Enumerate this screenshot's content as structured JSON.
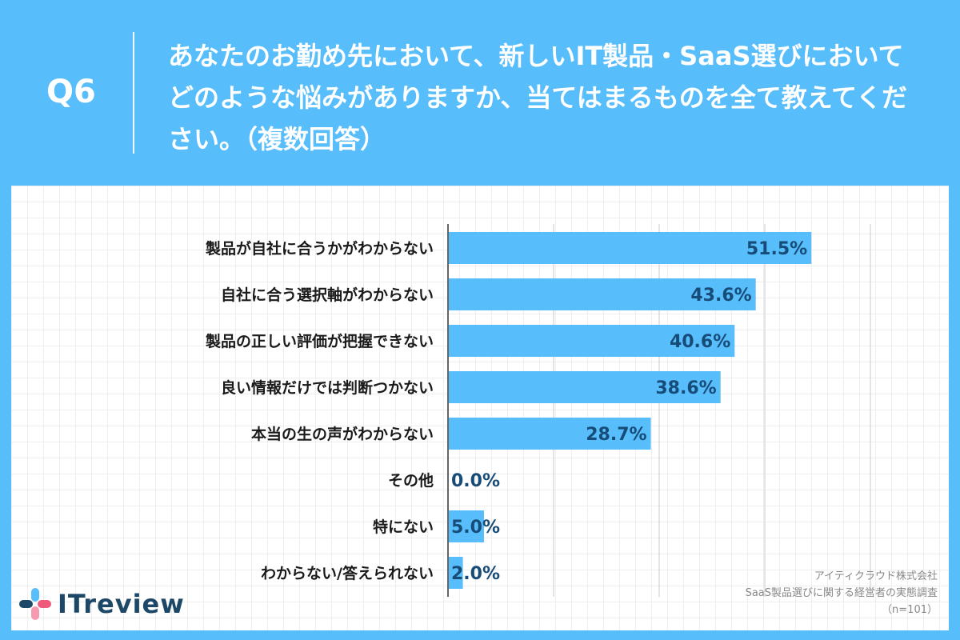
{
  "header": {
    "q_label": "Q6",
    "question": "あなたのお勤め先において、新しいIT製品・SaaS選びにおいてどのような悩みがありますか、当てはまるものを全て教えてください。（複数回答）"
  },
  "footer": {
    "company": "アイティクラウド株式会社",
    "survey": "SaaS製品選びに関する経営者の実態調査",
    "sample": "（n=101）",
    "logo_text": "ITreview"
  },
  "colors": {
    "background": "#57bdfb",
    "bar": "#57bdfb",
    "value_text": "#174c78"
  },
  "chart_data": {
    "type": "bar",
    "orientation": "horizontal",
    "categories": [
      "製品が自社に合うかがわからない",
      "自社に合う選択軸がわからない",
      "製品の正しい評価が把握できない",
      "良い情報だけでは判断つかない",
      "本当の生の声がわからない",
      "その他",
      "特にない",
      "わからない/答えられない"
    ],
    "values": [
      51.5,
      43.6,
      40.6,
      38.6,
      28.7,
      0.0,
      5.0,
      2.0
    ],
    "value_labels": [
      "51.5%",
      "43.6%",
      "40.6%",
      "38.6%",
      "28.7%",
      "0.0%",
      "5.0%",
      "2.0%"
    ],
    "xlim": [
      0,
      60
    ],
    "grid": true,
    "gridline_values": [
      15,
      30,
      45,
      60
    ]
  }
}
